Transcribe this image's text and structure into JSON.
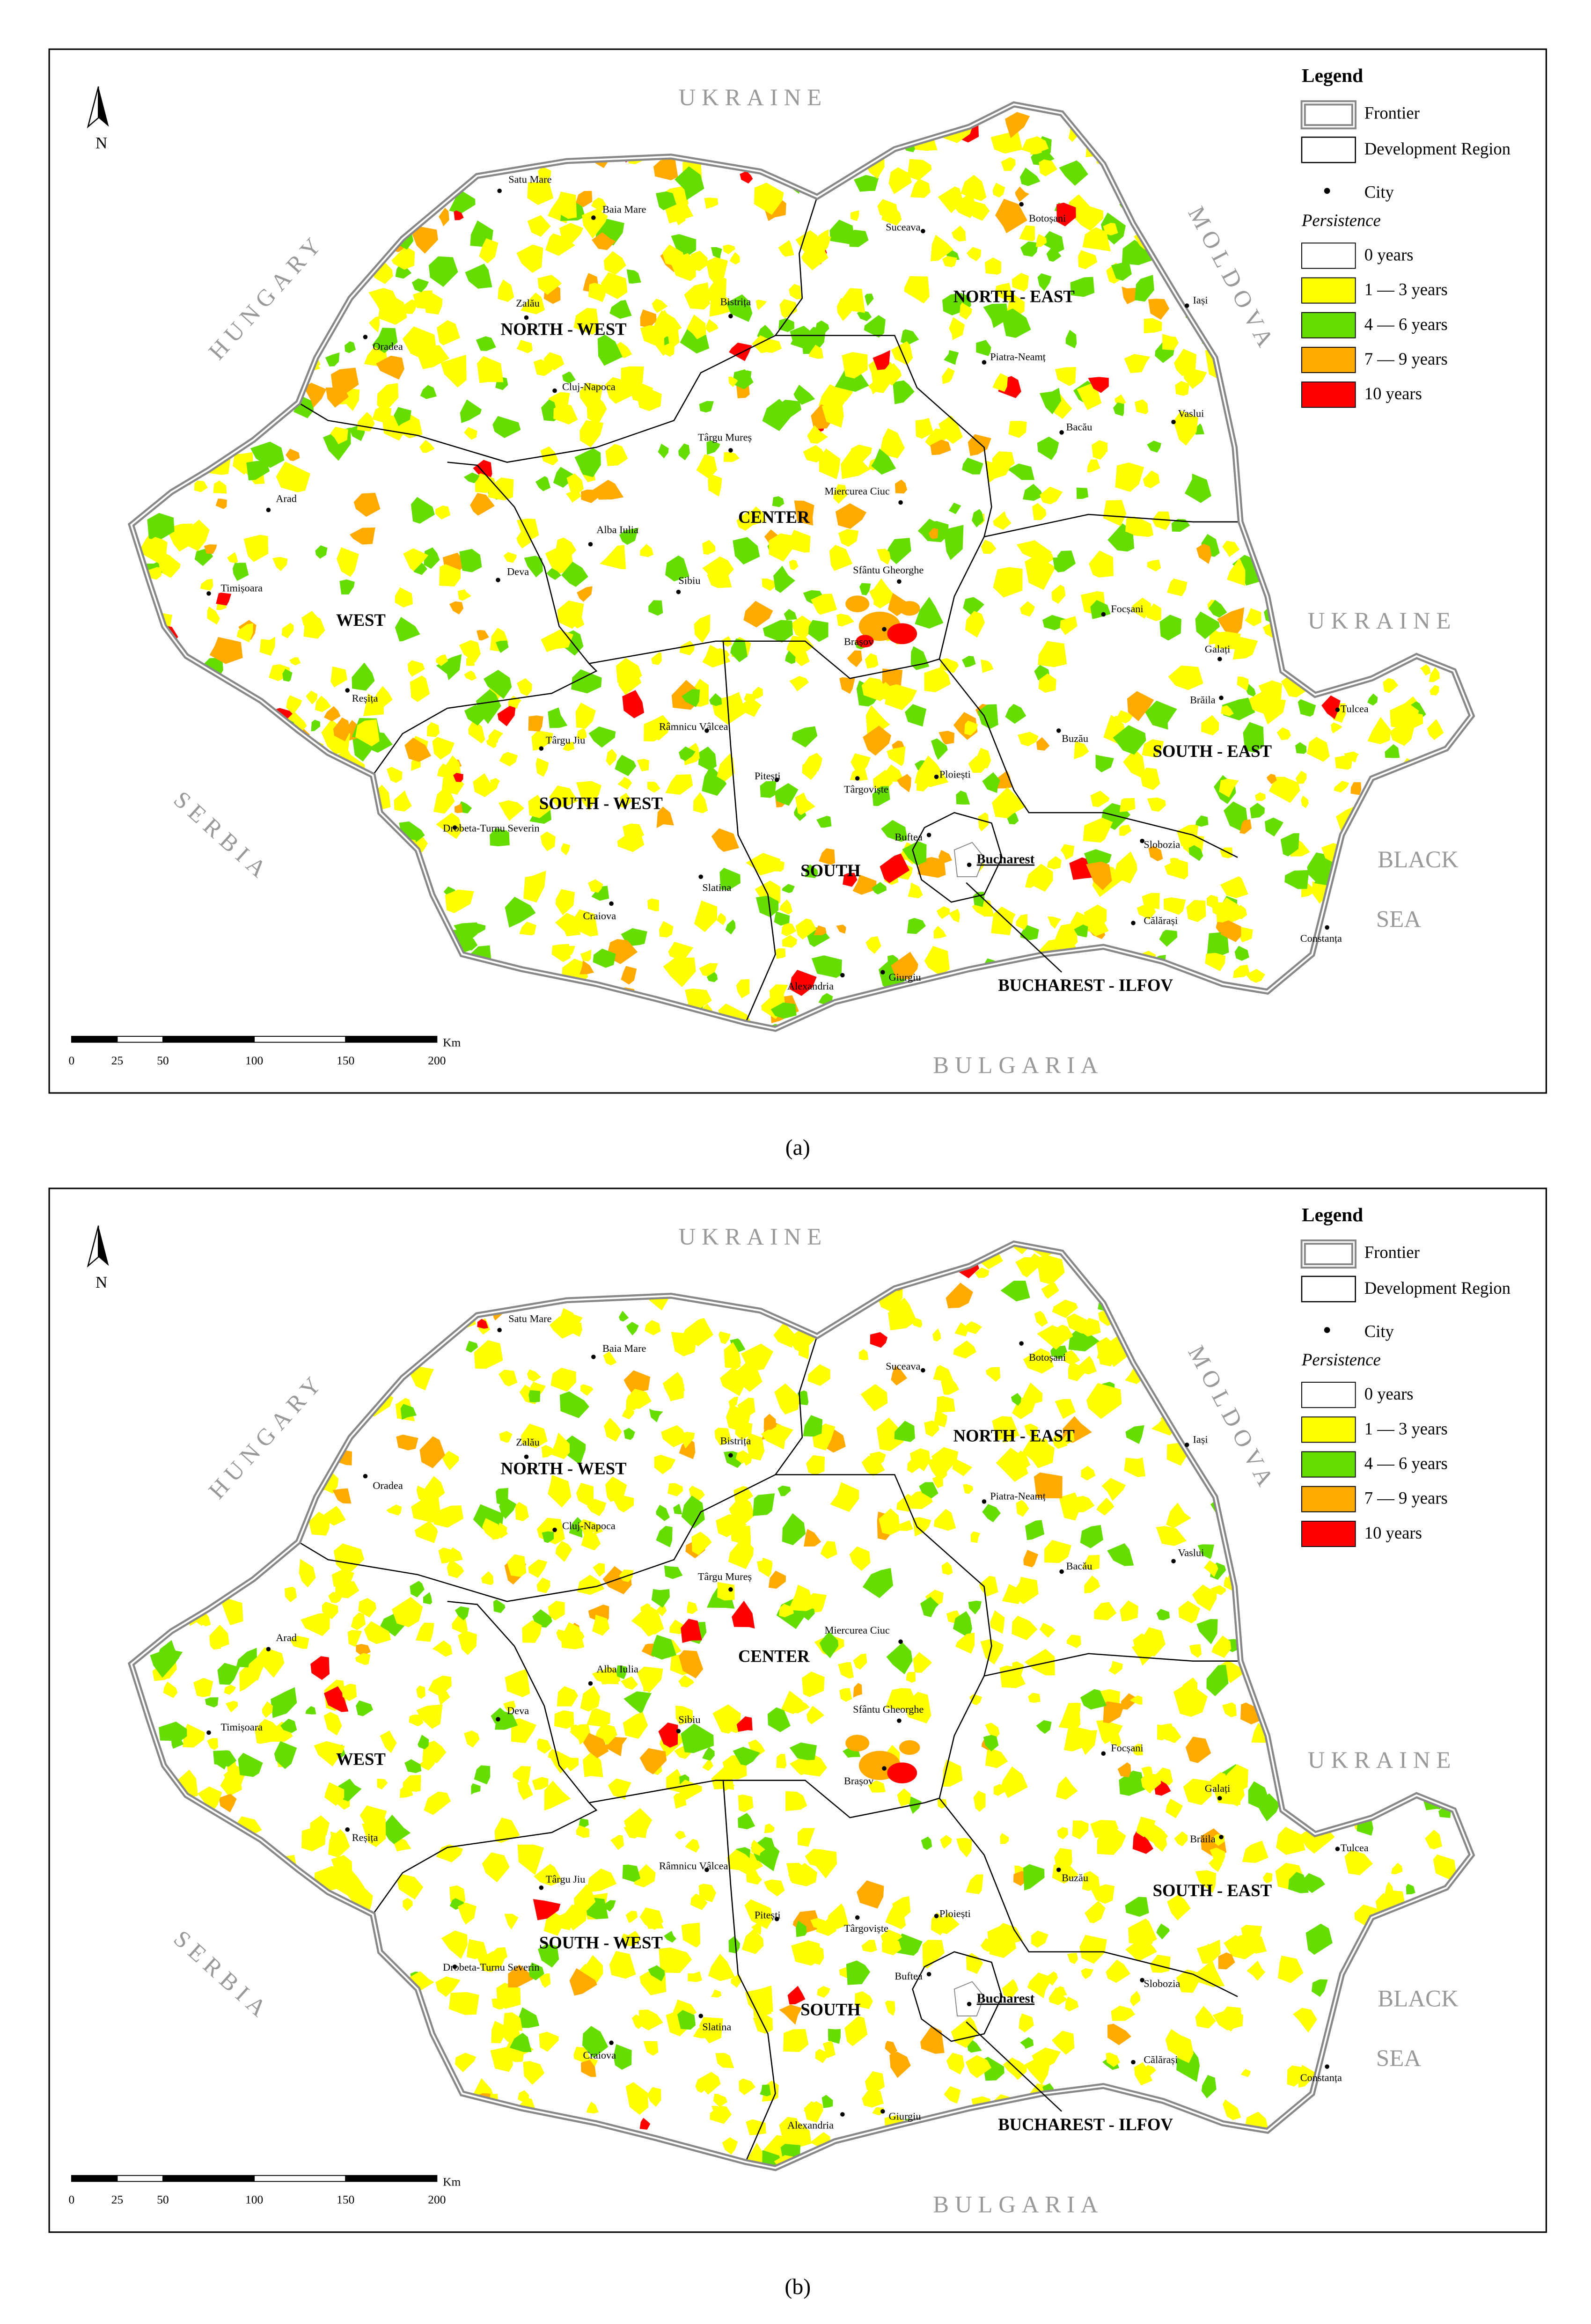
{
  "maps": [
    {
      "caption": "(a)",
      "north": "N",
      "neighbors": [
        "UKRAINE",
        "HUNGARY",
        "MOLDOVA",
        "UKRAINE",
        "SERBIA",
        "BULGARIA"
      ],
      "sea_label_lines": [
        "BLACK",
        "SEA"
      ],
      "regions": [
        "NORTH - WEST",
        "NORTH - EAST",
        "CENTER",
        "WEST",
        "SOUTH - WEST",
        "SOUTH",
        "SOUTH - EAST",
        "BUCHAREST - ILFOV"
      ],
      "cities": [
        "Satu Mare",
        "Baia Mare",
        "Suceava",
        "Botoșani",
        "Zalău",
        "Bistrița",
        "Oradea",
        "Iași",
        "Piatra-Neamț",
        "Cluj-Napoca",
        "Târgu Mureș",
        "Bacău",
        "Vaslui",
        "Miercurea Ciuc",
        "Arad",
        "Alba Iulia",
        "Deva",
        "Sibiu",
        "Sfântu Gheorghe",
        "Timișoara",
        "Focșani",
        "Brașov",
        "Galați",
        "Tulcea",
        "Brăila",
        "Reșița",
        "Târgu Jiu",
        "Râmnicu Vâlcea",
        "Buzău",
        "Pitești",
        "Târgoviște",
        "Ploiești",
        "Drobeta-Turnu Severin",
        "Buftea",
        "Bucharest",
        "Slobozia",
        "Craiova",
        "Slatina",
        "Călărași",
        "Constanța",
        "Alexandria",
        "Giurgiu"
      ],
      "scale": {
        "unit": "Km",
        "ticks": [
          0,
          25,
          50,
          100,
          150,
          200
        ]
      },
      "legend": {
        "title": "Legend",
        "frontier": "Frontier",
        "region": "Development Region",
        "city": "City",
        "persistence": "Persistence",
        "classes": [
          {
            "label": "0 years",
            "color": "#ffffff"
          },
          {
            "label": "1 — 3 years",
            "color": "#ffff00"
          },
          {
            "label": "4 — 6 years",
            "color": "#66dd00"
          },
          {
            "label": "7 — 9 years",
            "color": "#ffaa00"
          },
          {
            "label": "10 years",
            "color": "#ff0000"
          }
        ]
      }
    },
    {
      "caption": "(b)",
      "north": "N",
      "neighbors": [
        "UKRAINE",
        "HUNGARY",
        "MOLDOVA",
        "UKRAINE",
        "SERBIA",
        "BULGARIA"
      ],
      "sea_label_lines": [
        "BLACK",
        "SEA"
      ],
      "regions": [
        "NORTH - WEST",
        "NORTH - EAST",
        "CENTER",
        "WEST",
        "SOUTH - WEST",
        "SOUTH",
        "SOUTH - EAST",
        "BUCHAREST - ILFOV"
      ],
      "cities": [
        "Satu Mare",
        "Baia Mare",
        "Suceava",
        "Botoșani",
        "Zalău",
        "Bistrița",
        "Oradea",
        "Iași",
        "Piatra-Neamț",
        "Cluj-Napoca",
        "Târgu Mureș",
        "Bacău",
        "Vaslui",
        "Miercurea Ciuc",
        "Arad",
        "Alba Iulia",
        "Deva",
        "Sibiu",
        "Sfântu Gheorghe",
        "Timișoara",
        "Focșani",
        "Brașov",
        "Galați",
        "Tulcea",
        "Brăila",
        "Reșița",
        "Târgu Jiu",
        "Râmnicu Vâlcea",
        "Buzău",
        "Pitești",
        "Târgoviște",
        "Ploiești",
        "Drobeta-Turnu Severin",
        "Buftea",
        "Bucharest",
        "Slobozia",
        "Craiova",
        "Slatina",
        "Călărași",
        "Constanța",
        "Alexandria",
        "Giurgiu"
      ],
      "scale": {
        "unit": "Km",
        "ticks": [
          0,
          25,
          50,
          100,
          150,
          200
        ]
      },
      "legend": {
        "title": "Legend",
        "frontier": "Frontier",
        "region": "Development Region",
        "city": "City",
        "persistence": "Persistence",
        "classes": [
          {
            "label": "0 years",
            "color": "#ffffff"
          },
          {
            "label": "1 — 3 years",
            "color": "#ffff00"
          },
          {
            "label": "4 — 6 years",
            "color": "#66dd00"
          },
          {
            "label": "7 — 9 years",
            "color": "#ffaa00"
          },
          {
            "label": "10 years",
            "color": "#ff0000"
          }
        ]
      }
    }
  ]
}
